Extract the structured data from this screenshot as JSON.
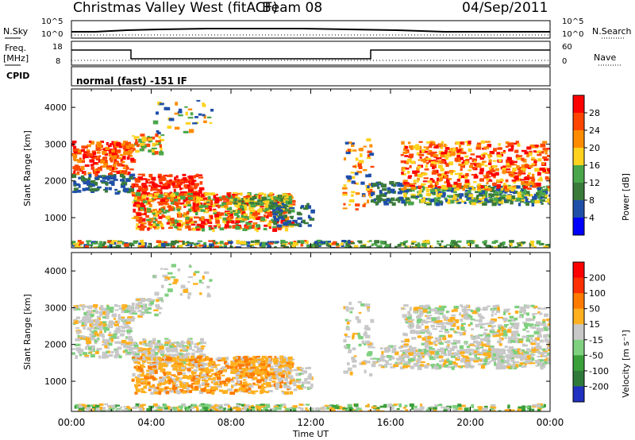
{
  "header": {
    "station": "Christmas Valley West (fitACF)",
    "beam": "Beam 08",
    "date": "04/Sep/2011"
  },
  "top_panels": {
    "nsky_label": "N.Sky",
    "nsky_ticks": [
      "10^5",
      "10^0"
    ],
    "nsearch_label": "N.Search",
    "nsearch_ticks": [
      "10^5",
      "10^0"
    ],
    "freq_label": "Freq.",
    "freq_unit": "[MHz]",
    "freq_ticks": [
      "18",
      "8"
    ],
    "nave_label": "Nave",
    "nave_ticks": [
      "60",
      "0"
    ],
    "cpid_label": "CPID",
    "cpid_text": "normal (fast) -151 IF"
  },
  "chart_data": [
    {
      "type": "heatmap",
      "name": "power",
      "ylabel": "Slant Range [km]",
      "xlabel": "",
      "x_range_hours": [
        0,
        24
      ],
      "ylim_km": [
        180,
        4500
      ],
      "y_ticks": [
        "4000",
        "3000",
        "2000",
        "1000"
      ],
      "colorbar_label": "Power [dB]",
      "colorbar_ticks": [
        "28",
        "24",
        "20",
        "16",
        "12",
        "8",
        "4"
      ],
      "colors": [
        "#0000ff",
        "#1f4fa8",
        "#3a7a3a",
        "#4aa64a",
        "#ffd21f",
        "#ff8c00",
        "#ff4500",
        "#ff0000"
      ]
    },
    {
      "type": "heatmap",
      "name": "velocity",
      "ylabel": "Slant Range [km]",
      "xlabel": "Time UT",
      "x_range_hours": [
        0,
        24
      ],
      "x_ticks": [
        "00:00",
        "04:00",
        "08:00",
        "12:00",
        "16:00",
        "20:00",
        "00:00"
      ],
      "ylim_km": [
        180,
        4500
      ],
      "y_ticks": [
        "4000",
        "3000",
        "2000",
        "1000"
      ],
      "colorbar_label": "Velocity [m s⁻¹]",
      "colorbar_ticks": [
        "200",
        "100",
        "50",
        "15",
        "-15",
        "-50",
        "-100",
        "-200"
      ],
      "colors": [
        "#2030c0",
        "#2f7a3a",
        "#3aa03a",
        "#7fd07f",
        "#c8c8c8",
        "#ffb020",
        "#ff7a00",
        "#ff3000",
        "#ff0000"
      ]
    }
  ]
}
